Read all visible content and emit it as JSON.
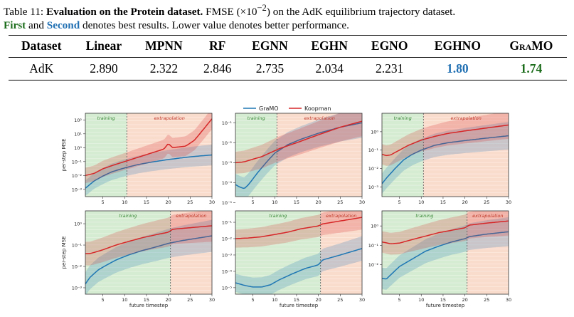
{
  "caption": {
    "table_no": "Table 11:",
    "bold_title": "Evaluation on the Protein dataset.",
    "text1": "FMSE (×10",
    "exponent": "−2",
    "text2": ") on the AdK equilibrium trajectory dataset.",
    "first_label": "First",
    "and": "and",
    "second_label": "Second",
    "text3": "denotes best results. Lower value denotes better performance."
  },
  "table": {
    "headers": [
      "Dataset",
      "Linear",
      "MPNN",
      "RF",
      "EGNN",
      "EGHN",
      "EGNO",
      "EGHNO",
      "GraMO"
    ],
    "row": [
      "AdK",
      "2.890",
      "2.322",
      "2.846",
      "2.735",
      "2.034",
      "2.231",
      "1.80",
      "1.74"
    ]
  },
  "figure": {
    "legend": [
      "GraMO",
      "Koopman"
    ],
    "colors": {
      "gramo": "#1f77b4",
      "koopman": "#d62728",
      "training": "#d6ecd2",
      "extrapolation": "#fadccd"
    },
    "ylabel": "per-step MSE",
    "xlabel": "future timestep",
    "xticks": [
      "5",
      "10",
      "15",
      "20",
      "25",
      "30"
    ],
    "region_training": "training",
    "region_extrapolation": "extrapolation"
  },
  "chart_data": [
    {
      "type": "line",
      "panel": "row1-col1",
      "xlim": [
        1,
        30
      ],
      "ylog": true,
      "ylim": [
        0.0003,
        300
      ],
      "split_x": 10.5,
      "ytick_labels": [
        "10⁻³",
        "10⁻²",
        "10⁻¹",
        "10⁰",
        "10¹",
        "10²"
      ],
      "ytick_values": [
        0.001,
        0.01,
        0.1,
        1,
        10,
        100
      ],
      "series": [
        {
          "name": "GraMO",
          "x": [
            1,
            3,
            5,
            7,
            10,
            13,
            16,
            20,
            25,
            30
          ],
          "y": [
            0.0012,
            0.004,
            0.009,
            0.018,
            0.035,
            0.06,
            0.09,
            0.14,
            0.22,
            0.3
          ]
        },
        {
          "name": "Koopman",
          "x": [
            1,
            3,
            5,
            7,
            10,
            13,
            16,
            19,
            20,
            21,
            24,
            26,
            28,
            30
          ],
          "y": [
            0.01,
            0.014,
            0.03,
            0.05,
            0.1,
            0.2,
            0.4,
            0.8,
            2.0,
            1.0,
            1.3,
            3.5,
            20,
            120
          ]
        }
      ]
    },
    {
      "type": "line",
      "panel": "row1-col2",
      "xlim": [
        1,
        30
      ],
      "ylog": true,
      "ylim": [
        2e-05,
        0.3
      ],
      "split_x": 10.5,
      "ytick_labels": [
        "10⁻⁵",
        "10⁻⁴",
        "10⁻³",
        "10⁻²",
        "10⁻¹"
      ],
      "ytick_values": [
        1e-05,
        0.0001,
        0.001,
        0.01,
        0.1
      ],
      "series": [
        {
          "name": "GraMO",
          "x": [
            1,
            2,
            3,
            4,
            6,
            8,
            10,
            13,
            16,
            20,
            25,
            30
          ],
          "y": [
            8e-05,
            6e-05,
            5e-05,
            8e-05,
            0.0003,
            0.001,
            0.003,
            0.008,
            0.015,
            0.03,
            0.06,
            0.1
          ]
        },
        {
          "name": "Koopman",
          "x": [
            1,
            3,
            5,
            7,
            10,
            11,
            15,
            20,
            25,
            30
          ],
          "y": [
            0.001,
            0.0011,
            0.0015,
            0.002,
            0.004,
            0.005,
            0.01,
            0.025,
            0.06,
            0.12
          ]
        }
      ]
    },
    {
      "type": "line",
      "panel": "row1-col3",
      "xlim": [
        1,
        30
      ],
      "ylog": true,
      "ylim": [
        0.0003,
        10
      ],
      "split_x": 10.5,
      "ytick_labels": [
        "10⁻³",
        "10⁻²",
        "10⁻¹",
        "10⁰"
      ],
      "ytick_values": [
        0.001,
        0.01,
        0.1,
        1
      ],
      "series": [
        {
          "name": "GraMO",
          "x": [
            1,
            2,
            4,
            6,
            8,
            10,
            13,
            16,
            20,
            25,
            30
          ],
          "y": [
            0.0015,
            0.003,
            0.01,
            0.03,
            0.06,
            0.1,
            0.18,
            0.25,
            0.33,
            0.45,
            0.6
          ]
        },
        {
          "name": "Koopman",
          "x": [
            1,
            2,
            3,
            5,
            7,
            10,
            13,
            16,
            20,
            25,
            30
          ],
          "y": [
            0.06,
            0.05,
            0.055,
            0.1,
            0.18,
            0.35,
            0.55,
            0.8,
            1.1,
            1.6,
            2.3
          ]
        }
      ]
    },
    {
      "type": "line",
      "panel": "row2-col1",
      "xlim": [
        1,
        30
      ],
      "ylog": true,
      "ylim": [
        0.0005,
        4
      ],
      "split_x": 20.5,
      "ytick_labels": [
        "10⁻³",
        "10⁻²",
        "10⁻¹",
        "10⁰"
      ],
      "ytick_values": [
        0.001,
        0.01,
        0.1,
        1
      ],
      "series": [
        {
          "name": "GraMO",
          "x": [
            1,
            2,
            4,
            6,
            8,
            11,
            14,
            17,
            20,
            23,
            26,
            30
          ],
          "y": [
            0.0015,
            0.003,
            0.007,
            0.012,
            0.02,
            0.035,
            0.055,
            0.08,
            0.12,
            0.16,
            0.2,
            0.27
          ]
        },
        {
          "name": "Koopman",
          "x": [
            1,
            2,
            3,
            5,
            8,
            11,
            14,
            17,
            20,
            21,
            25,
            30
          ],
          "y": [
            0.04,
            0.04,
            0.045,
            0.06,
            0.1,
            0.15,
            0.22,
            0.3,
            0.4,
            0.55,
            0.65,
            0.8
          ]
        }
      ]
    },
    {
      "type": "line",
      "panel": "row2-col2",
      "xlim": [
        1,
        30
      ],
      "ylog": true,
      "ylim": [
        4e-06,
        0.5
      ],
      "split_x": 20.5,
      "ytick_labels": [
        "10⁻⁵",
        "10⁻⁴",
        "10⁻³",
        "10⁻²",
        "10⁻¹"
      ],
      "ytick_values": [
        1e-05,
        0.0001,
        0.001,
        0.01,
        0.1
      ],
      "series": [
        {
          "name": "GraMO",
          "x": [
            1,
            3,
            5,
            7,
            9,
            11,
            14,
            17,
            20,
            21,
            25,
            30
          ],
          "y": [
            2e-05,
            1.4e-05,
            1.1e-05,
            1.1e-05,
            1.5e-05,
            3e-05,
            7e-05,
            0.00015,
            0.00025,
            0.0005,
            0.001,
            0.0025
          ]
        },
        {
          "name": "Koopman",
          "x": [
            1,
            4,
            7,
            10,
            13,
            16,
            20,
            21,
            25,
            30
          ],
          "y": [
            0.01,
            0.011,
            0.013,
            0.018,
            0.025,
            0.04,
            0.06,
            0.08,
            0.12,
            0.2
          ]
        }
      ]
    },
    {
      "type": "line",
      "panel": "row2-col3",
      "xlim": [
        1,
        30
      ],
      "ylog": true,
      "ylim": [
        0.0003,
        6
      ],
      "split_x": 20.5,
      "ytick_labels": [
        "10⁻²",
        "10⁻¹",
        "10⁰"
      ],
      "ytick_values": [
        0.01,
        0.1,
        1
      ],
      "series": [
        {
          "name": "GraMO",
          "x": [
            1,
            2,
            3,
            5,
            8,
            11,
            14,
            17,
            20,
            21,
            25,
            30
          ],
          "y": [
            0.002,
            0.0018,
            0.003,
            0.008,
            0.02,
            0.05,
            0.09,
            0.15,
            0.22,
            0.28,
            0.38,
            0.5
          ]
        },
        {
          "name": "Koopman",
          "x": [
            1,
            3,
            5,
            8,
            11,
            14,
            17,
            20,
            21,
            25,
            30
          ],
          "y": [
            0.15,
            0.12,
            0.13,
            0.2,
            0.3,
            0.45,
            0.6,
            0.8,
            1.1,
            1.4,
            1.8
          ]
        }
      ]
    }
  ]
}
